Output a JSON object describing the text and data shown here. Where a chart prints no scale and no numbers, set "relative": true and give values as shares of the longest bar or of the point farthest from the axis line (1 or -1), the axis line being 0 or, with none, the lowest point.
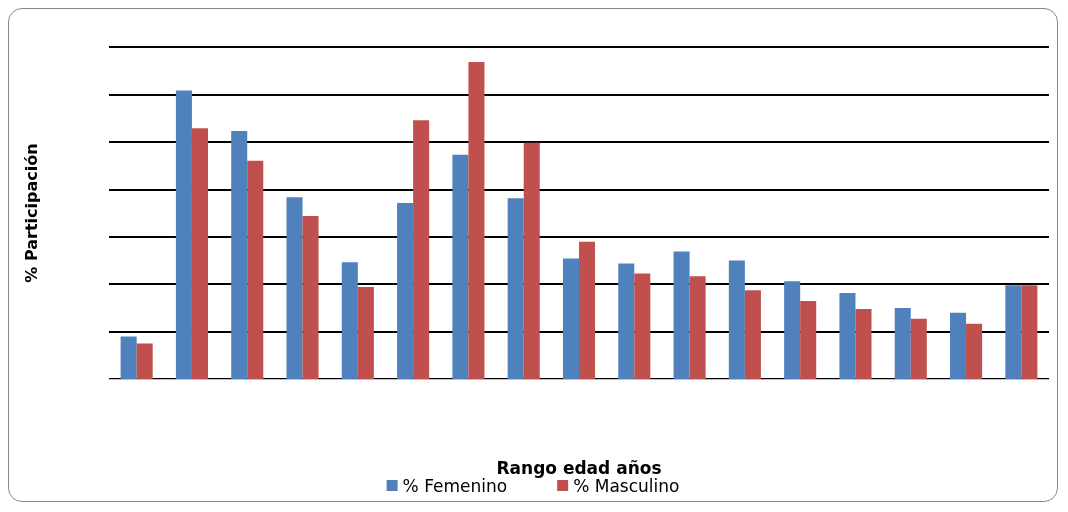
{
  "chart_data": {
    "type": "bar",
    "relative": true,
    "xlabel": "Rango edad años",
    "ylabel": "% Participación",
    "categories": [
      null,
      null,
      null,
      null,
      null,
      null,
      null,
      null,
      null,
      null,
      null,
      null,
      null,
      null,
      null,
      null,
      null
    ],
    "series": [
      {
        "name": "% Femenino",
        "color": "#4f81bd",
        "values": [
          0.134,
          0.91,
          0.782,
          0.573,
          0.368,
          0.555,
          0.707,
          0.57,
          0.38,
          0.364,
          0.402,
          0.374,
          0.308,
          0.271,
          0.224,
          0.209,
          0.296
        ]
      },
      {
        "name": "% Masculino",
        "color": "#c0504d",
        "values": [
          0.112,
          0.791,
          0.688,
          0.514,
          0.29,
          0.816,
          1.0,
          0.745,
          0.433,
          0.333,
          0.324,
          0.28,
          0.246,
          0.221,
          0.19,
          0.174,
          0.296
        ]
      }
    ],
    "grid": "y",
    "legend": "bottom"
  }
}
